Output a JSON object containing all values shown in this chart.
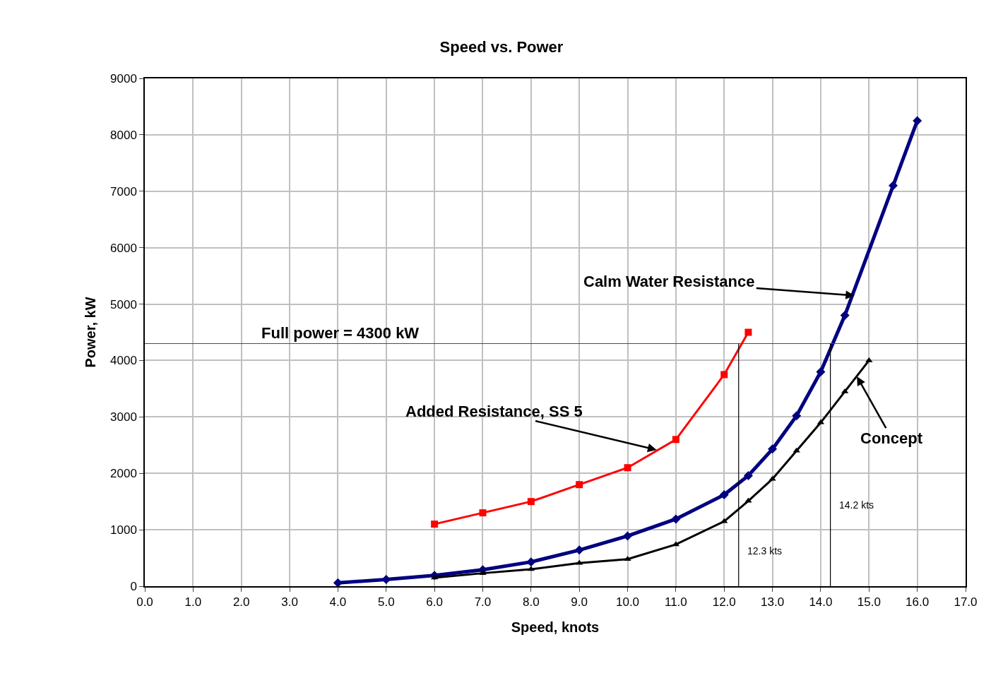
{
  "chart_data": {
    "type": "line",
    "title": "Speed vs. Power",
    "xlabel": "Speed, knots",
    "ylabel": "Power, kW",
    "xlim": [
      0,
      17
    ],
    "xticks": [
      {
        "value": 0,
        "label": "0.0"
      },
      {
        "value": 1,
        "label": "1.0"
      },
      {
        "value": 2,
        "label": "2.0"
      },
      {
        "value": 3,
        "label": "3.0"
      },
      {
        "value": 4,
        "label": "4.0"
      },
      {
        "value": 5,
        "label": "5.0"
      },
      {
        "value": 6,
        "label": "6.0"
      },
      {
        "value": 7,
        "label": "7.0"
      },
      {
        "value": 8,
        "label": "8.0"
      },
      {
        "value": 9,
        "label": "9.0"
      },
      {
        "value": 10,
        "label": "10.0"
      },
      {
        "value": 11,
        "label": "11.0"
      },
      {
        "value": 12,
        "label": "12.0"
      },
      {
        "value": 13,
        "label": "13.0"
      },
      {
        "value": 14,
        "label": "14.0"
      },
      {
        "value": 15,
        "label": "15.0"
      },
      {
        "value": 16,
        "label": "16.0"
      },
      {
        "value": 17,
        "label": "17.0"
      }
    ],
    "ylim": [
      0,
      9000
    ],
    "yticks": [
      0,
      1000,
      2000,
      3000,
      4000,
      5000,
      6000,
      7000,
      8000,
      9000
    ],
    "grid": true,
    "series": [
      {
        "color": "#ff0000",
        "marker": "square",
        "x": [
          6,
          7,
          8,
          9,
          10,
          11,
          12,
          12.5
        ],
        "values": [
          1100,
          1300,
          1500,
          1800,
          2100,
          2600,
          3750,
          4500
        ]
      },
      {
        "color": "#000080",
        "marker": "diamond",
        "x": [
          4,
          5,
          6,
          7,
          8,
          9,
          10,
          11,
          12,
          12.5,
          13,
          13.5,
          14,
          14.5,
          15.5,
          16
        ],
        "values": [
          60,
          120,
          190,
          290,
          430,
          640,
          890,
          1190,
          1620,
          1960,
          2430,
          3020,
          3800,
          4800,
          7100,
          8250
        ]
      },
      {
        "color": "#000000",
        "marker": "triangle",
        "x": [
          6,
          7,
          8,
          9,
          10,
          11,
          12,
          12.5,
          13,
          13.5,
          14,
          14.5,
          15
        ],
        "values": [
          150,
          230,
          300,
          410,
          480,
          740,
          1150,
          1510,
          1900,
          2400,
          2900,
          3450,
          4000
        ]
      }
    ],
    "ref_lines": [
      {
        "axis": "y",
        "value": 4300,
        "label": "Full power = 4300 kW",
        "color": "#008000"
      },
      {
        "axis": "x",
        "value": 12.3,
        "label": "12.3 kts",
        "color": "#000000"
      },
      {
        "axis": "x",
        "value": 14.2,
        "label": "14.2 kts",
        "color": "#000000"
      }
    ],
    "annotations": [
      {
        "text": "Calm Water Resistance",
        "x": 14.7,
        "y": 5150
      },
      {
        "text": "Added Resistance, SS 5",
        "x": 10.6,
        "y": 2415
      },
      {
        "text": "Concept",
        "x": 14.75,
        "y": 3717
      }
    ]
  }
}
